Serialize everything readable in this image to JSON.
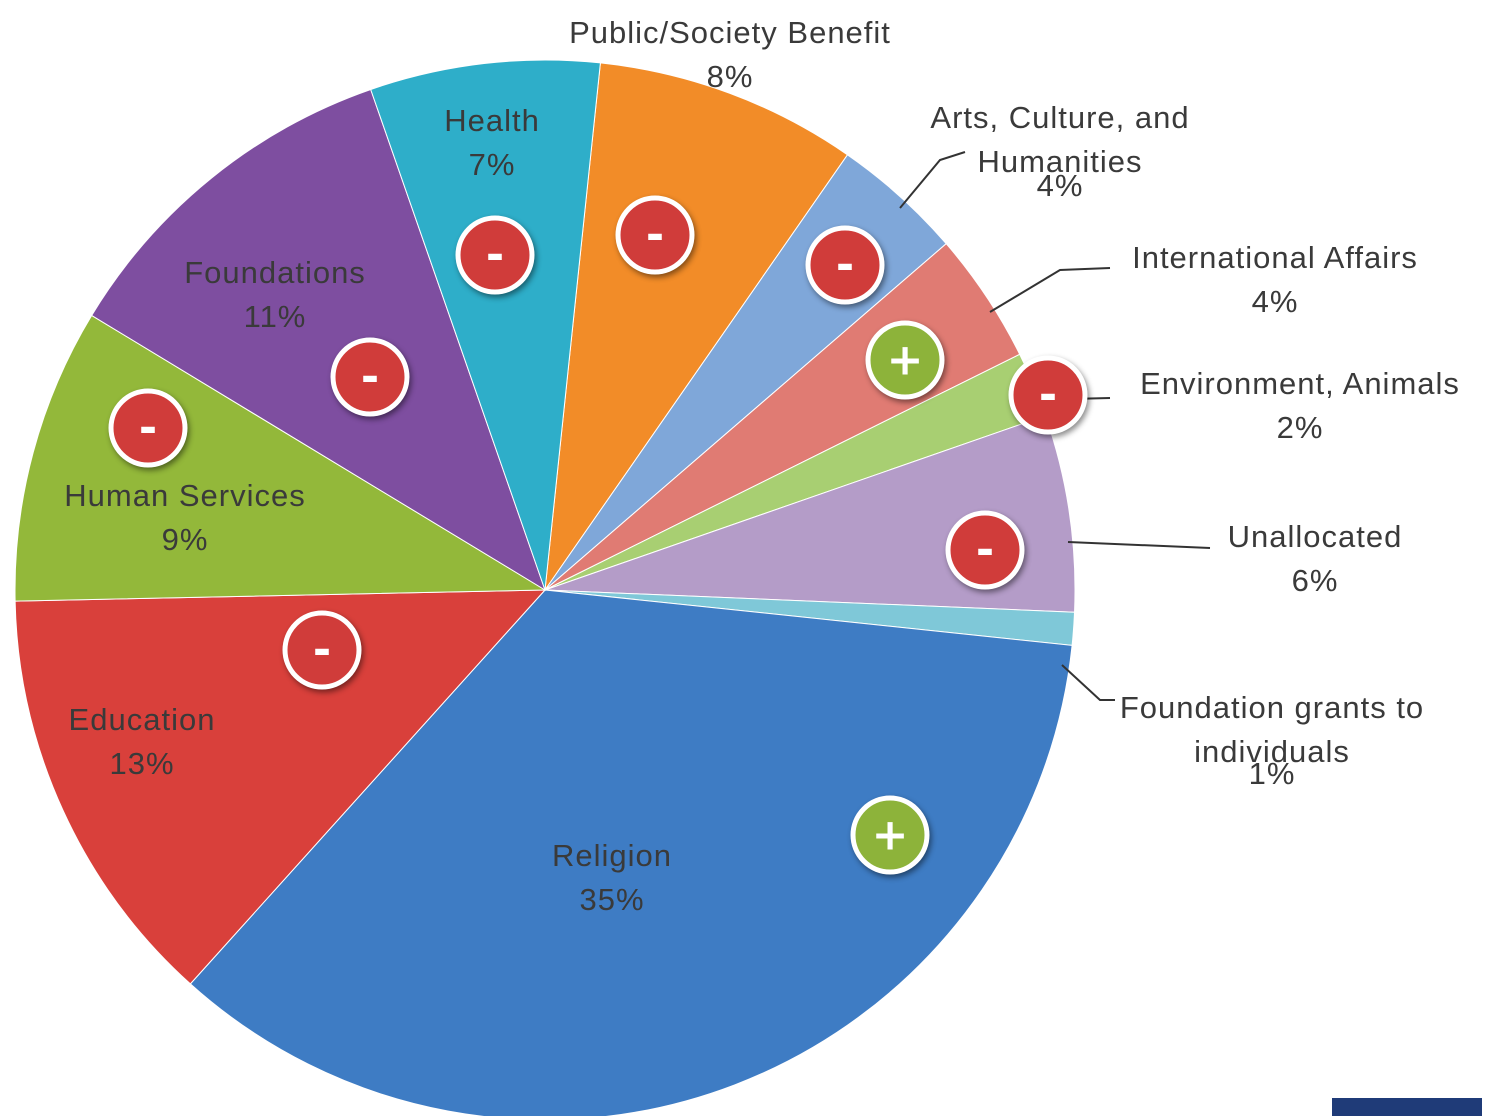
{
  "chart_data": {
    "type": "pie",
    "categories": [
      "Public/Society Benefit",
      "Arts, Culture, and Humanities",
      "International Affairs",
      "Environment, Animals",
      "Unallocated",
      "Foundation grants to individuals",
      "Religion",
      "Education",
      "Human Services",
      "Foundations",
      "Health"
    ],
    "values": [
      8,
      4,
      4,
      2,
      6,
      1,
      35,
      13,
      9,
      11,
      7
    ],
    "value_labels": [
      "8%",
      "4%",
      "4%",
      "2%",
      "6%",
      "1%",
      "35%",
      "13%",
      "9%",
      "11%",
      "7%"
    ],
    "colors": [
      "#f28c28",
      "#7fa7d9",
      "#e07b73",
      "#a8cf72",
      "#b49cc8",
      "#7fc8d8",
      "#3e7cc4",
      "#d9403b",
      "#93b83a",
      "#7e4ea0",
      "#2eaec9"
    ],
    "markers": [
      "-",
      "-",
      "+",
      "-",
      "-",
      null,
      "+",
      "-",
      "-",
      "-",
      "-"
    ]
  }
}
